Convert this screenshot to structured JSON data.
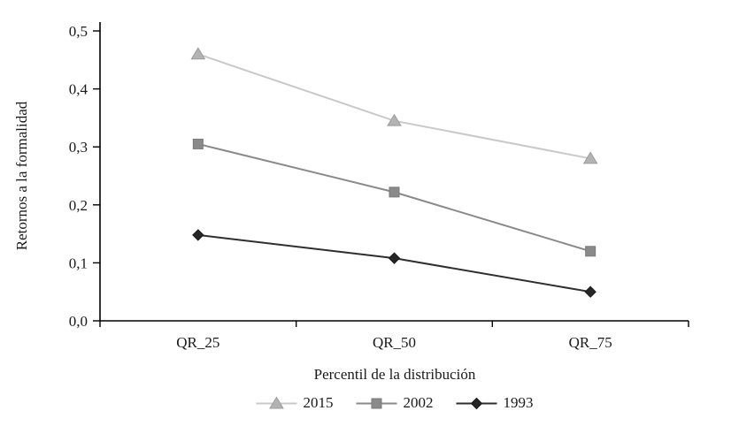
{
  "chart_data": {
    "type": "line",
    "title": "",
    "categories": [
      "QR_25",
      "QR_50",
      "QR_75"
    ],
    "series": [
      {
        "name": "2015",
        "marker": "triangle",
        "line_color": "#c9c9c9",
        "marker_fill": "#b3b3b3",
        "marker_stroke": "#9c9c9c",
        "values": [
          0.46,
          0.345,
          0.28
        ]
      },
      {
        "name": "2002",
        "marker": "square",
        "line_color": "#8a8a8a",
        "marker_fill": "#8a8a8a",
        "marker_stroke": "#7a7a7a",
        "values": [
          0.305,
          0.222,
          0.12
        ]
      },
      {
        "name": "1993",
        "marker": "diamond",
        "line_color": "#2e2e2e",
        "marker_fill": "#262626",
        "marker_stroke": "#1a1a1a",
        "values": [
          0.148,
          0.108,
          0.05
        ]
      }
    ],
    "xlabel": "Percentil de la distribución",
    "ylabel": "Retornos a la formalidad",
    "ylim": [
      0,
      0.5
    ],
    "ytick_step": 0.1,
    "ytick_labels": [
      "0,0",
      "0,1",
      "0,2",
      "0,3",
      "0,4",
      "0,5"
    ],
    "decimal_separator": ",",
    "grid": false,
    "legend_position": "bottom",
    "axis_color": "#000000"
  }
}
